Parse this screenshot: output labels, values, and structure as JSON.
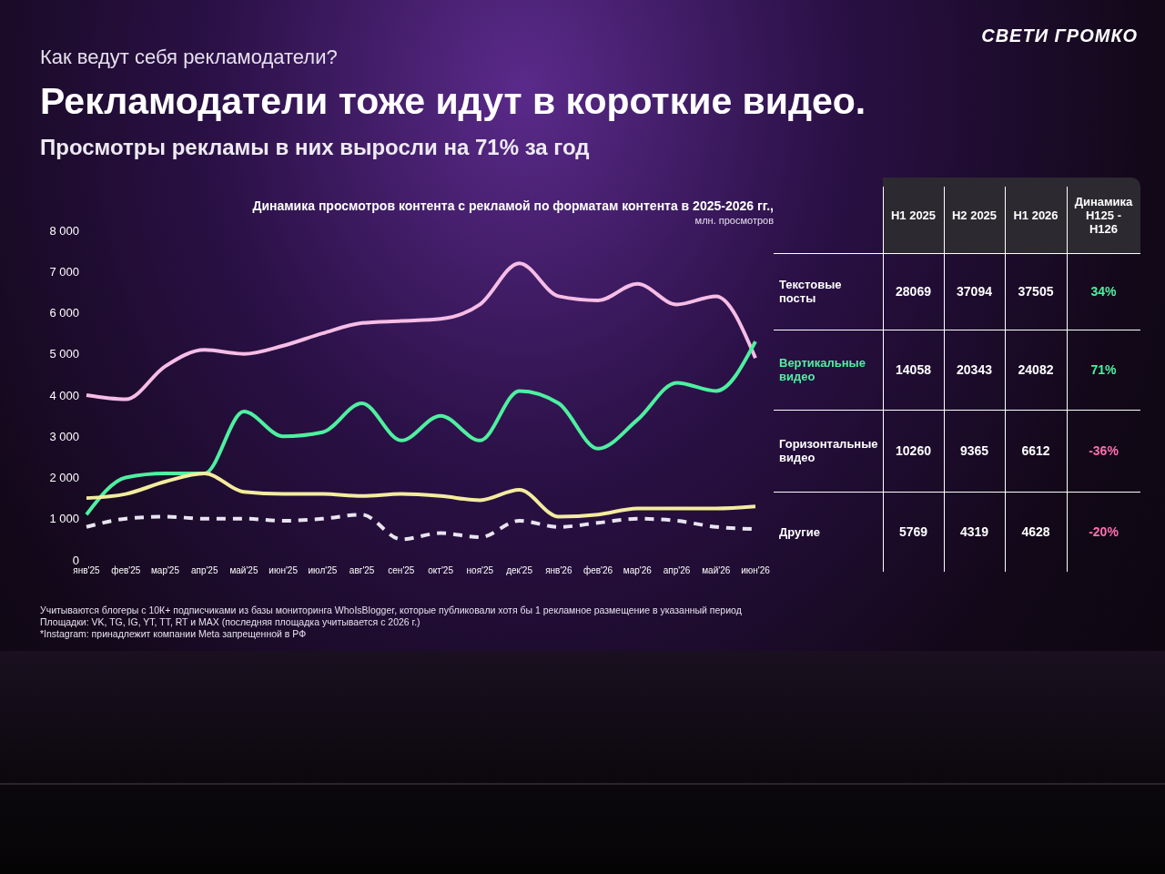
{
  "header": {
    "brand": "СВЕТИ ГРОМКО",
    "kicker": "Как ведут себя рекламодатели?",
    "title": "Рекламодатели тоже идут в короткие видео.",
    "subtitle": "Просмотры рекламы в них выросли на 71% за год"
  },
  "chart_data": {
    "type": "line",
    "title": "Динамика просмотров контента с рекламой по форматам контента в 2025-2026 гг.,",
    "y_label": "млн. просмотров",
    "categories": [
      "янв'25",
      "фев'25",
      "мар'25",
      "апр'25",
      "май'25",
      "июн'25",
      "июл'25",
      "авг'25",
      "сен'25",
      "окт'25",
      "ноя'25",
      "дек'25",
      "янв'26",
      "фев'26",
      "мар'26",
      "апр'26",
      "май'26",
      "июн'26"
    ],
    "ylim": [
      0,
      8000
    ],
    "yticks": [
      0,
      {
        "value": 1000,
        "label": "1 000"
      },
      {
        "value": 2000,
        "label": "2 000"
      },
      {
        "value": 3000,
        "label": "3 000"
      },
      {
        "value": 4000,
        "label": "4 000"
      },
      {
        "value": 5000,
        "label": "5 000"
      },
      {
        "value": 6000,
        "label": "6 000"
      },
      {
        "value": 7000,
        "label": "7 000"
      },
      {
        "value": 8000,
        "label": "8 000"
      }
    ],
    "grid": false,
    "series": [
      {
        "name": "Текстовые посты",
        "color": "#f6bde6",
        "line_style": "solid",
        "values": [
          4000,
          3900,
          4700,
          5100,
          5000,
          5200,
          5500,
          5750,
          5800,
          5850,
          6200,
          7200,
          6400,
          6300,
          6700,
          6200,
          6400,
          4900
        ]
      },
      {
        "name": "Вертикальные видео",
        "color": "#4ef0a0",
        "line_style": "solid",
        "values": [
          1100,
          2000,
          2100,
          2100,
          3600,
          3000,
          3100,
          3800,
          2900,
          3500,
          2900,
          4100,
          3800,
          2700,
          3400,
          4300,
          4100,
          5300
        ]
      },
      {
        "name": "Горизонтальные видео",
        "color": "#f3ec9e",
        "line_style": "solid",
        "values": [
          1500,
          1600,
          1900,
          2100,
          1650,
          1600,
          1600,
          1550,
          1600,
          1550,
          1450,
          1700,
          1050,
          1100,
          1250,
          1250,
          1250,
          1300
        ]
      },
      {
        "name": "Другие",
        "color": "#e8e4f0",
        "line_style": "dashed",
        "values": [
          800,
          1000,
          1050,
          1000,
          1000,
          950,
          1000,
          1100,
          500,
          650,
          550,
          950,
          800,
          900,
          1000,
          950,
          800,
          750
        ]
      }
    ]
  },
  "table": {
    "columns": [
      "H1 2025",
      "H2 2025",
      "H1 2026",
      "Динамика H125 - H126"
    ],
    "rows": [
      {
        "label": "Текстовые посты",
        "color": "#ffffff",
        "cells": [
          "28069",
          "37094",
          "37505",
          "34%"
        ],
        "change_color": "#4ef0a0"
      },
      {
        "label": "Вертикальные видео",
        "color": "#4ef0a0",
        "cells": [
          "14058",
          "20343",
          "24082",
          "71%"
        ],
        "change_color": "#4ef0a0"
      },
      {
        "label": "Горизонтальные видео",
        "color": "#ffffff",
        "cells": [
          "10260",
          "9365",
          "6612",
          "-36%"
        ],
        "change_color": "#ff6fb0"
      },
      {
        "label": "Другие",
        "color": "#ffffff",
        "cells": [
          "5769",
          "4319",
          "4628",
          "-20%"
        ],
        "change_color": "#ff6fb0"
      }
    ]
  },
  "footnotes": [
    "Учитываются блогеры с 10К+ подписчиками из базы мониторинга WhoIsBlogger, которые публиковали хотя бы 1 рекламное размещение в указанный период",
    "Площадки: VK, TG, IG, YT, TT, RT и MAX (последняя площадка учитывается с 2026 г.)",
    "*Instagram: принадлежит компании Meta запрещенной в РФ"
  ]
}
